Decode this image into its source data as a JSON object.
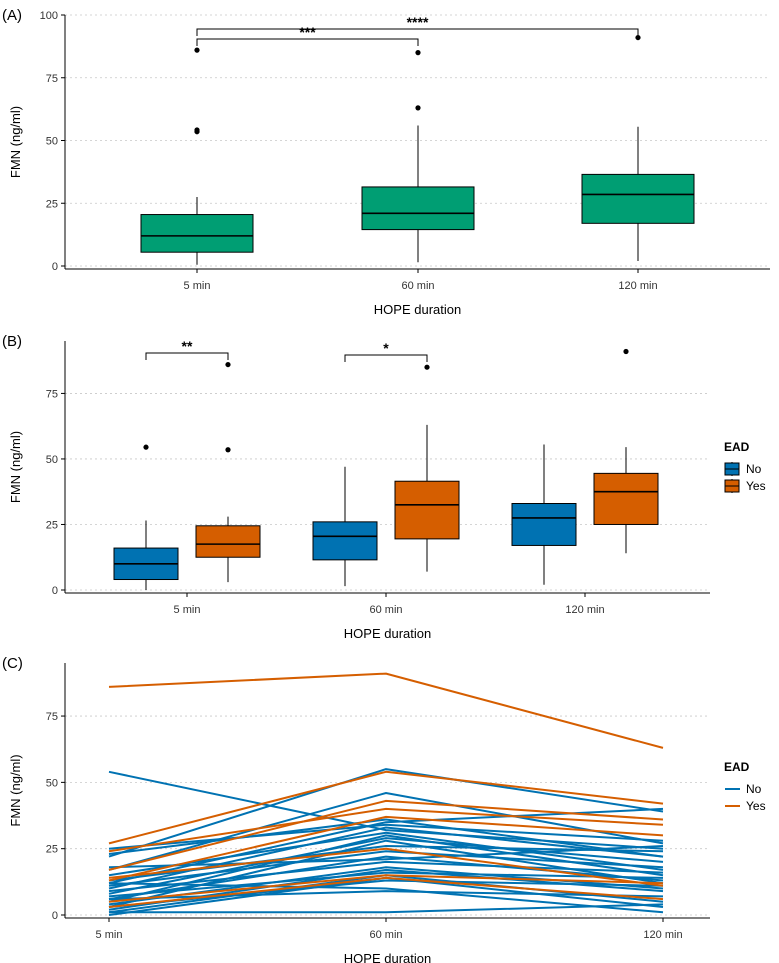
{
  "chart_data": [
    {
      "panel": "(A)",
      "type": "boxplot",
      "xlabel": "HOPE duration",
      "ylabel": "FMN (ng/ml)",
      "ylim": [
        0,
        100
      ],
      "yticks": [
        0,
        25,
        50,
        75,
        100
      ],
      "categories": [
        "5 min",
        "60 min",
        "120 min"
      ],
      "fill": "#009E73",
      "boxes": [
        {
          "q1": 5.5,
          "median": 12,
          "q3": 20.5,
          "lo": 0.5,
          "hi": 27.5,
          "outliers": [
            53.5,
            54.2,
            86
          ]
        },
        {
          "q1": 14.5,
          "median": 21,
          "q3": 31.5,
          "lo": 1.5,
          "hi": 56,
          "outliers": [
            63,
            85
          ]
        },
        {
          "q1": 17,
          "median": 28.5,
          "q3": 36.5,
          "lo": 2,
          "hi": 55.5,
          "outliers": [
            91
          ]
        }
      ],
      "brackets": [
        {
          "from": 0,
          "to": 1,
          "label": "***",
          "y": 90
        },
        {
          "from": 0,
          "to": 2,
          "label": "****",
          "y": 96
        }
      ]
    },
    {
      "panel": "(B)",
      "type": "boxplot",
      "xlabel": "HOPE duration",
      "ylabel": "FMN (ng/ml)",
      "ylim": [
        0,
        95
      ],
      "yticks": [
        0,
        25,
        50,
        75
      ],
      "categories": [
        "5 min",
        "60 min",
        "120 min"
      ],
      "legend": {
        "title": "EAD",
        "items": [
          {
            "label": "No",
            "color": "#0072B2"
          },
          {
            "label": "Yes",
            "color": "#D55E00"
          }
        ]
      },
      "series": [
        {
          "name": "No",
          "color": "#0072B2",
          "boxes": [
            {
              "q1": 4,
              "median": 10,
              "q3": 16,
              "lo": 0,
              "hi": 26.5,
              "outliers": [
                54.5
              ]
            },
            {
              "q1": 11.5,
              "median": 20.5,
              "q3": 26,
              "lo": 1.5,
              "hi": 47,
              "outliers": []
            },
            {
              "q1": 17,
              "median": 27.5,
              "q3": 33,
              "lo": 2,
              "hi": 55.5,
              "outliers": []
            }
          ]
        },
        {
          "name": "Yes",
          "color": "#D55E00",
          "boxes": [
            {
              "q1": 12.5,
              "median": 17.5,
              "q3": 24.5,
              "lo": 3,
              "hi": 28,
              "outliers": [
                53.5,
                86
              ]
            },
            {
              "q1": 19.5,
              "median": 32.5,
              "q3": 41.5,
              "lo": 7,
              "hi": 63,
              "outliers": [
                85
              ]
            },
            {
              "q1": 25,
              "median": 37.5,
              "q3": 44.5,
              "lo": 14,
              "hi": 54.5,
              "outliers": [
                91
              ]
            }
          ]
        }
      ],
      "brackets": [
        {
          "category": 0,
          "label": "**",
          "y": 89
        },
        {
          "category": 1,
          "label": "*",
          "y": 88
        }
      ]
    },
    {
      "panel": "(C)",
      "type": "line",
      "xlabel": "HOPE duration",
      "ylabel": "FMN (ng/ml)",
      "ylim": [
        0,
        95
      ],
      "yticks": [
        0,
        25,
        50,
        75
      ],
      "categories": [
        "5 min",
        "60 min",
        "120 min"
      ],
      "legend": {
        "title": "EAD",
        "items": [
          {
            "label": "No",
            "color": "#0072B2"
          },
          {
            "label": "Yes",
            "color": "#D55E00"
          }
        ]
      },
      "series": [
        {
          "name": "No",
          "color": "#0072B2",
          "lines": [
            [
              54,
              32,
              25
            ],
            [
              22,
              55,
              39
            ],
            [
              17,
              46,
              27
            ],
            [
              23,
              36,
              22
            ],
            [
              12,
              35,
              40
            ],
            [
              10,
              33,
              22
            ],
            [
              15,
              31,
              17
            ],
            [
              5,
              30,
              15
            ],
            [
              8,
              29,
              20
            ],
            [
              3,
              28,
              12
            ],
            [
              13,
              26,
              24
            ],
            [
              11,
              24,
              18
            ],
            [
              6,
              22,
              13
            ],
            [
              9,
              20,
              16
            ],
            [
              4,
              18,
              10
            ],
            [
              2,
              17,
              9
            ],
            [
              7,
              16,
              14
            ],
            [
              1,
              15,
              5
            ],
            [
              0,
              14,
              3
            ],
            [
              3,
              13,
              11
            ],
            [
              12,
              10,
              1
            ],
            [
              6,
              9,
              7
            ],
            [
              1,
              1,
              4
            ],
            [
              18,
              21,
              26
            ],
            [
              25,
              34,
              28
            ]
          ]
        },
        {
          "name": "Yes",
          "color": "#D55E00",
          "lines": [
            [
              86,
              91,
              63
            ],
            [
              27,
              54,
              42
            ],
            [
              17,
              43,
              36
            ],
            [
              24,
              40,
              34
            ],
            [
              14,
              25,
              11
            ],
            [
              5,
              15,
              12
            ],
            [
              3,
              14,
              6
            ],
            [
              13,
              37,
              30
            ]
          ]
        }
      ]
    }
  ]
}
